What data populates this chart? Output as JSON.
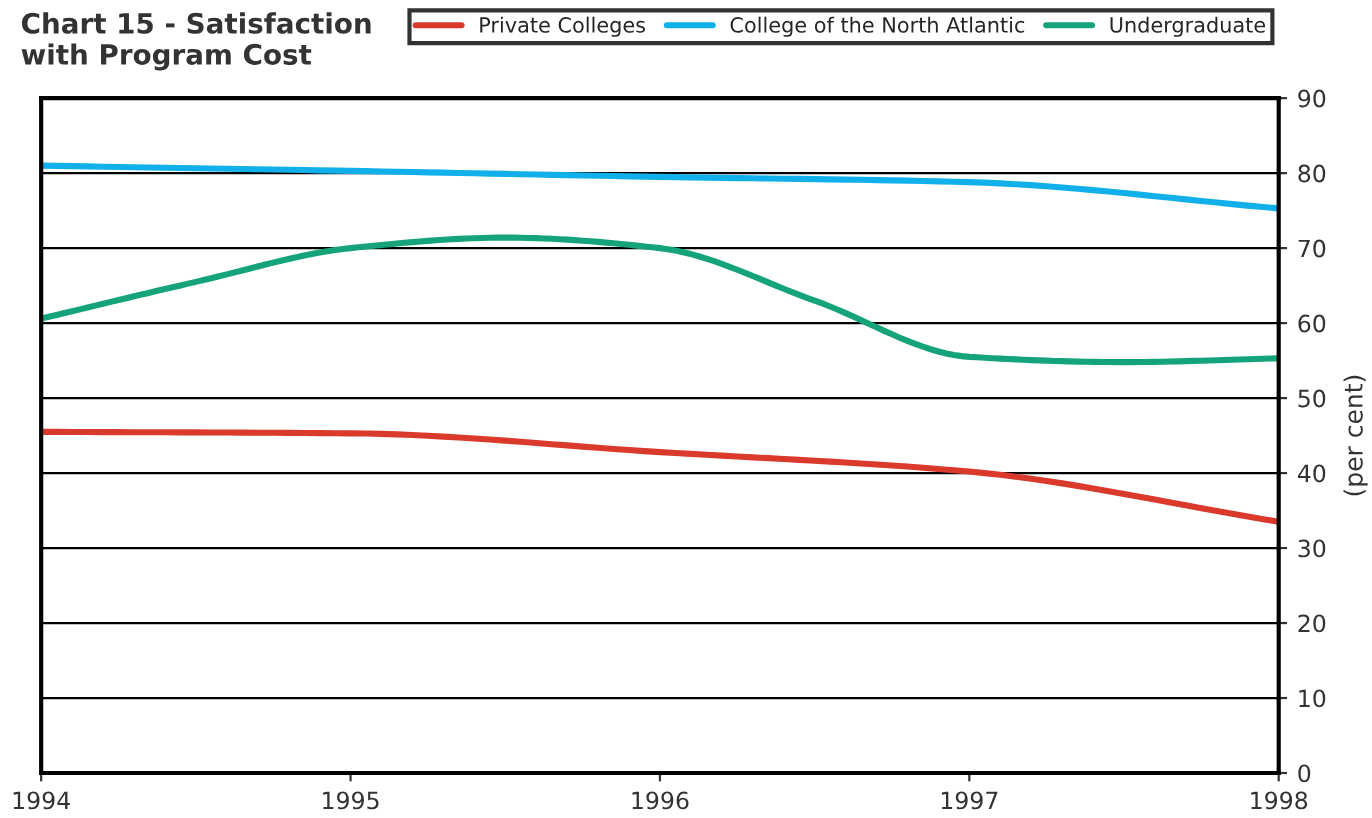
{
  "chart_data": {
    "type": "line",
    "title": "Chart 15 - Satisfaction\nwith Program Cost",
    "ylabel": "(per cent)",
    "x": [
      1994,
      1995,
      1996,
      1997,
      1998
    ],
    "series": [
      {
        "name": "Private Colleges",
        "color": "#d93a2b",
        "values": [
          45.5,
          45.3,
          42.8,
          40.2,
          33.5
        ]
      },
      {
        "name": "College of the North Atlantic",
        "color": "#12b0ea",
        "values": [
          81,
          80.3,
          79.5,
          78.8,
          75.3
        ]
      },
      {
        "name": "Undergraduate",
        "color": "#14a37a",
        "x": [
          1994,
          1994.5,
          1995,
          1995.5,
          1996,
          1996.5,
          1997,
          1997.5,
          1998
        ],
        "values": [
          60.6,
          65.5,
          70,
          71.4,
          70,
          63,
          55.5,
          54.8,
          55.3
        ]
      }
    ],
    "xlim": [
      1994,
      1998
    ],
    "xticks": [
      1994,
      1995,
      1996,
      1997,
      1998
    ],
    "ylim": [
      0,
      90
    ],
    "yticks": [
      0,
      10,
      20,
      30,
      40,
      50,
      60,
      70,
      80,
      90
    ],
    "grid": "y",
    "legend": "top right",
    "line_style": "solid",
    "marker": "none"
  }
}
